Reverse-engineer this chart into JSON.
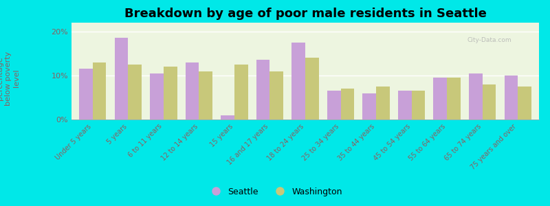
{
  "title": "Breakdown by age of poor male residents in Seattle",
  "ylabel": "percentage\nbelow poverty\nlevel",
  "categories": [
    "Under 5 years",
    "5 years",
    "6 to 11 years",
    "12 to 14 years",
    "15 years",
    "16 and 17 years",
    "18 to 24 years",
    "25 to 34 years",
    "35 to 44 years",
    "45 to 54 years",
    "55 to 64 years",
    "65 to 74 years",
    "75 years and over"
  ],
  "seattle": [
    11.5,
    18.5,
    10.5,
    13.0,
    1.0,
    13.5,
    17.5,
    6.5,
    6.0,
    6.5,
    9.5,
    10.5,
    10.0
  ],
  "washington": [
    13.0,
    12.5,
    12.0,
    11.0,
    12.5,
    11.0,
    14.0,
    7.0,
    7.5,
    6.5,
    9.5,
    8.0,
    7.5
  ],
  "seattle_color": "#c8a0d8",
  "washington_color": "#c8c87a",
  "background_color": "#edf5e0",
  "outer_background": "#00e8e8",
  "ylim": [
    0,
    22
  ],
  "yticks": [
    0,
    10,
    20
  ],
  "ytick_labels": [
    "0%",
    "10%",
    "20%"
  ],
  "title_fontsize": 13,
  "axis_label_fontsize": 8,
  "tick_label_color": "#8B6060",
  "legend_fontsize": 9,
  "bar_width": 0.38
}
